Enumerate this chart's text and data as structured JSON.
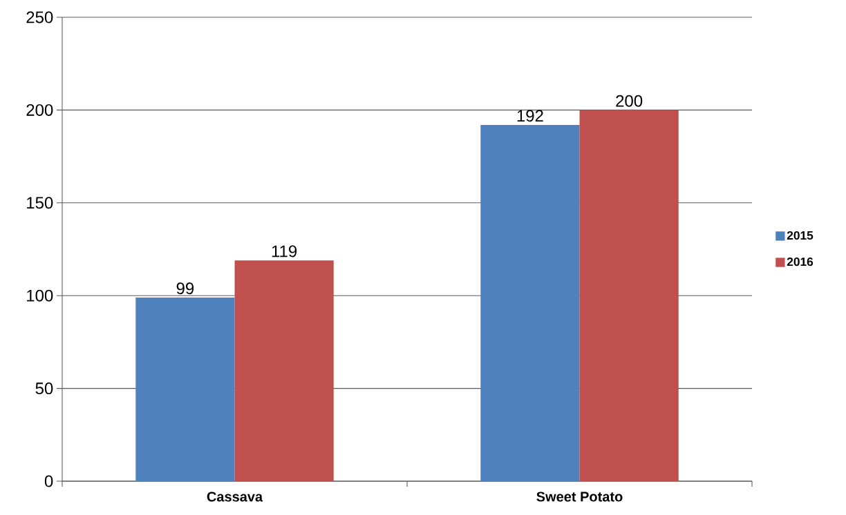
{
  "chart_data": {
    "type": "bar",
    "categories": [
      "Cassava",
      "Sweet Potato"
    ],
    "series": [
      {
        "name": "2015",
        "color": "#4f81bd",
        "values": [
          99,
          192
        ]
      },
      {
        "name": "2016",
        "color": "#c0504d",
        "values": [
          119,
          200
        ]
      }
    ],
    "ylim": [
      0,
      250
    ],
    "yticks": [
      0,
      50,
      100,
      150,
      200,
      250
    ],
    "grid": "y",
    "legend": "right",
    "data_labels": true
  }
}
